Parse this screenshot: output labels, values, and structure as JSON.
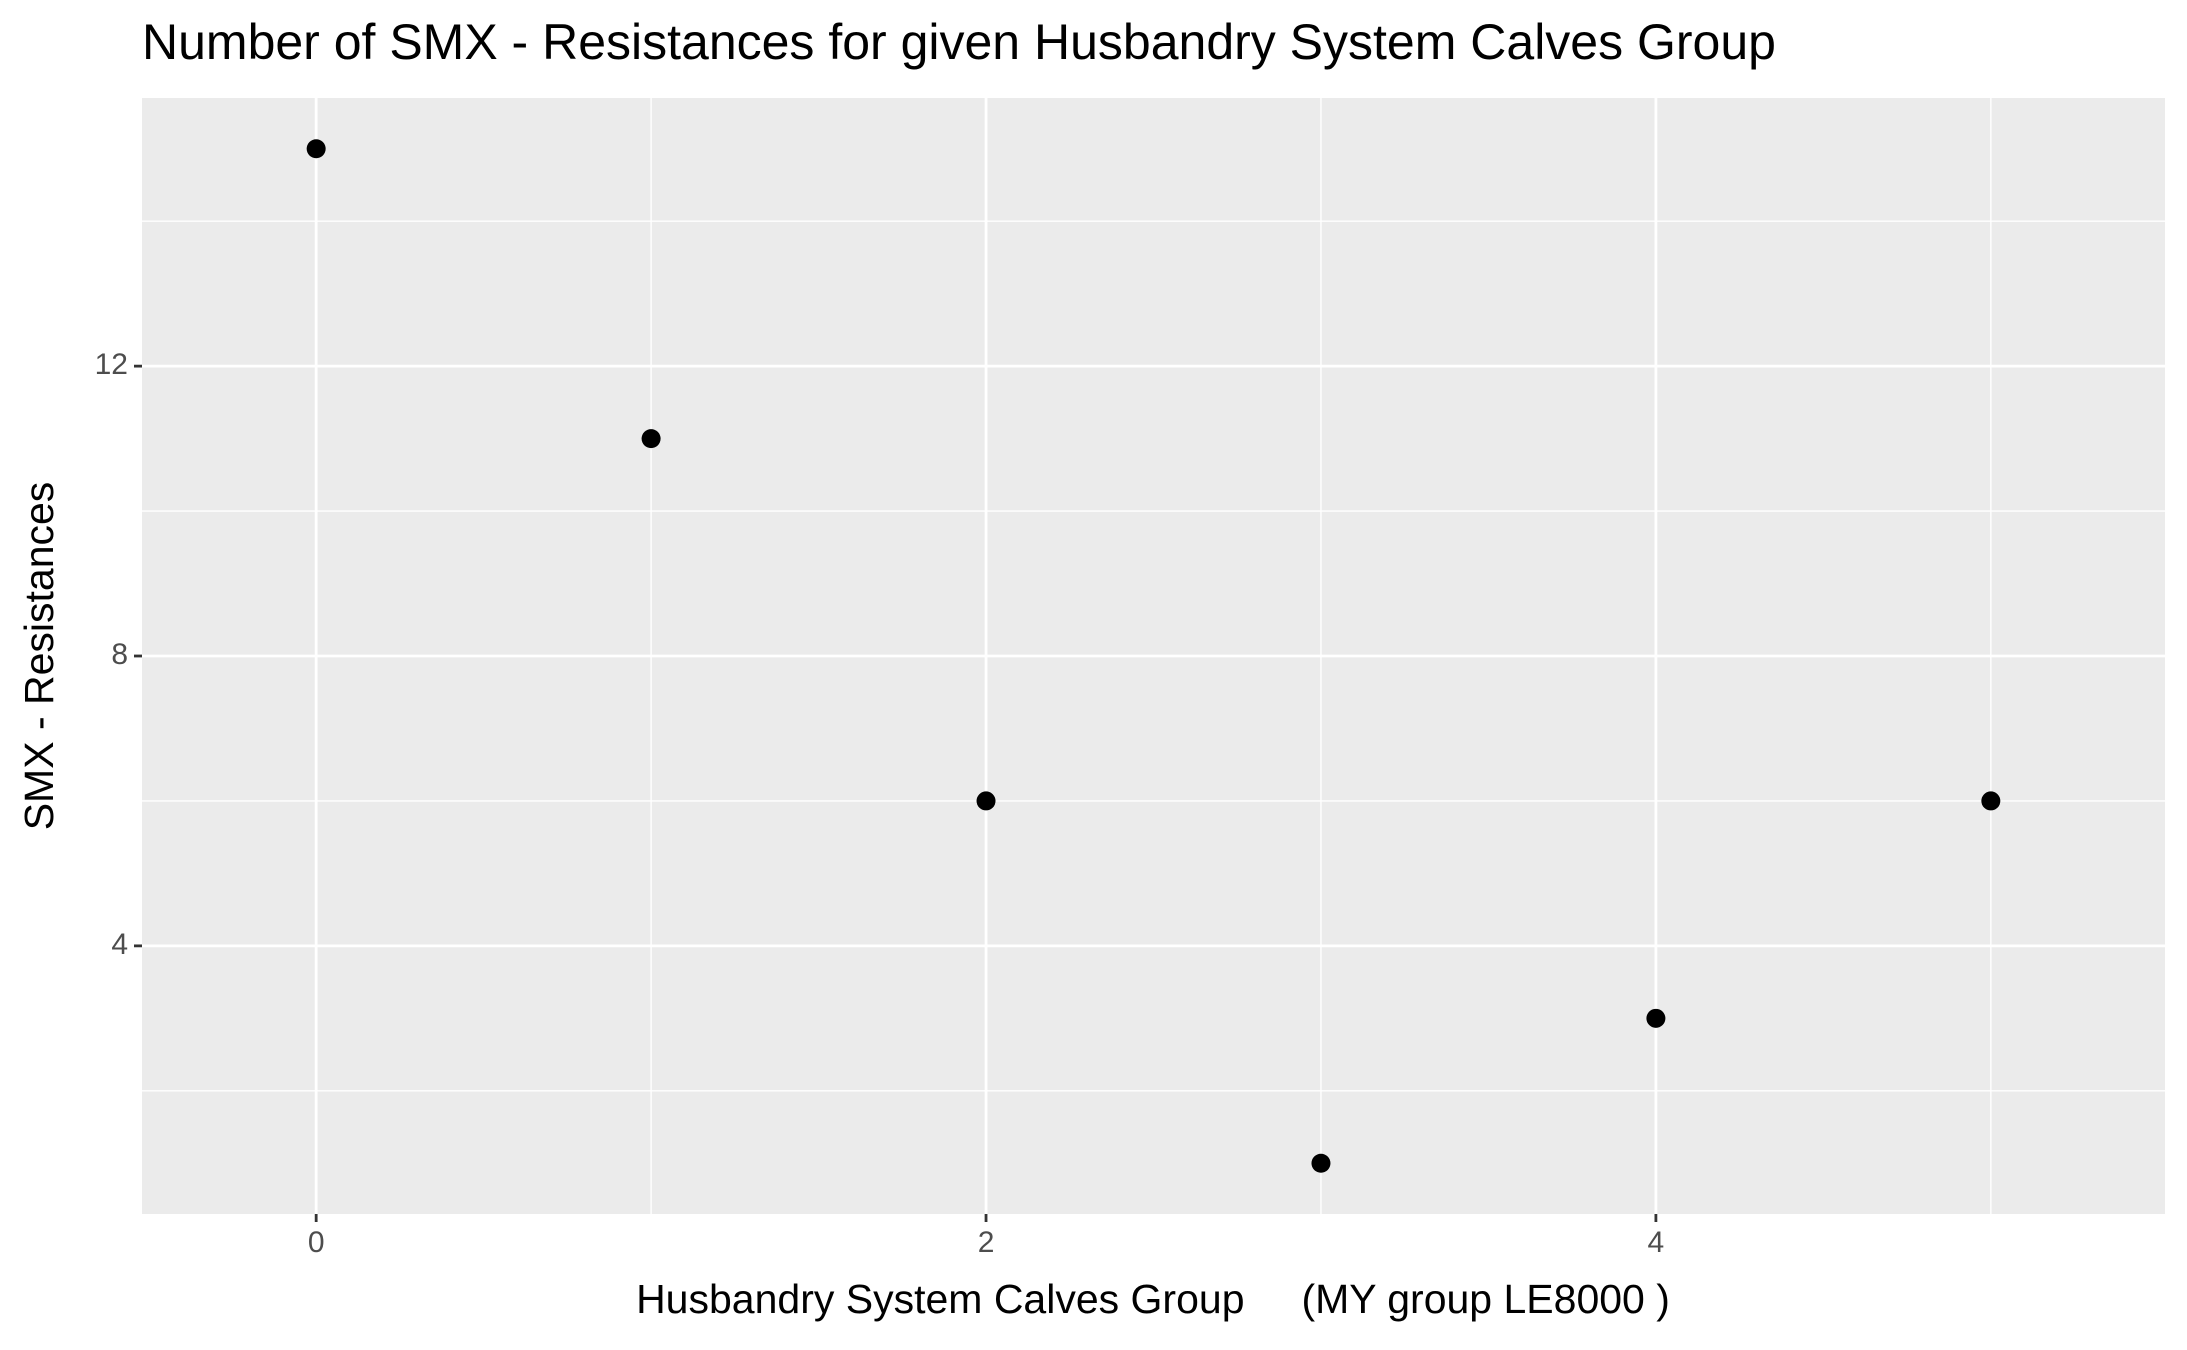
{
  "chart_data": {
    "type": "scatter",
    "title": "Number of SMX - Resistances for given Husbandry System Calves Group",
    "x_label": "Husbandry System Calves Group     (MY group LE8000 )",
    "y_label": "SMX - Resistances",
    "x": [
      0,
      1,
      2,
      3,
      4,
      5
    ],
    "values": [
      15,
      11,
      6,
      1,
      3,
      6
    ],
    "color": "#000000",
    "xlim": [
      -0.52,
      5.52
    ],
    "xticks": [
      0,
      2,
      4
    ],
    "ylim": [
      0.3,
      15.7
    ],
    "yticks": [
      4,
      8,
      12
    ],
    "grid": true
  }
}
